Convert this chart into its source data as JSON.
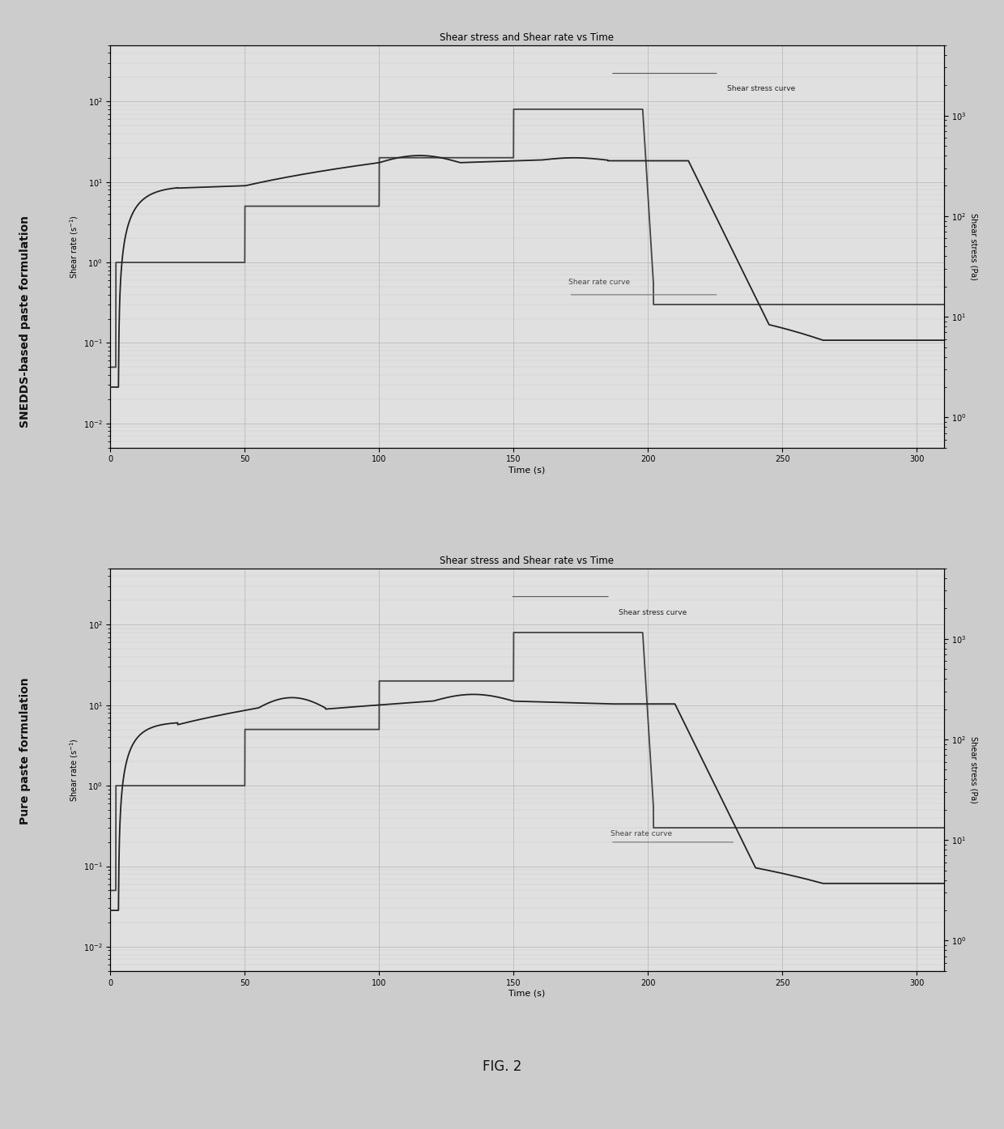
{
  "title": "Shear stress and Shear rate vs Time",
  "xlabel": "Time (s)",
  "ylabel_left": "Shear rate (s⁻¹)",
  "ylabel_right": "Shear stress (Pa)",
  "ylabel_outer_top": "SNEDDS-based paste formulation",
  "ylabel_outer_bottom": "Pure paste formulation",
  "fig_label": "FIG. 2",
  "bg_color": "#cccccc",
  "plot_bg_color": "#e0e0e0",
  "grid_color": "#aaaaaa",
  "shear_rate_color": "#444444",
  "shear_stress_color": "#222222",
  "line_width": 1.3,
  "time_max": 310,
  "time_ticks": [
    0,
    50,
    100,
    150,
    200,
    250,
    300
  ],
  "annotation_shear_stress": "Shear stress curve",
  "annotation_shear_rate": "Shear rate curve"
}
